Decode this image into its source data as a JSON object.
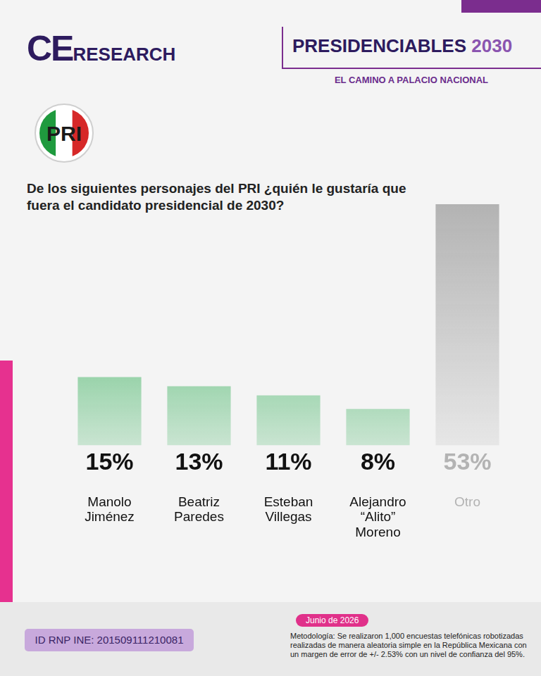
{
  "header": {
    "logo": [
      "CE",
      "RESEARCH"
    ],
    "title": [
      "PRESIDENCIABLES",
      "2030"
    ],
    "subtitle": "EL CAMINO A PALACIO NACIONAL"
  },
  "party_logo": "PRI",
  "chart_data": {
    "type": "bar",
    "title": "De los siguientes personajes del PRI ¿quién le gustaría que fuera el candidato presidencial de 2030?",
    "categories": [
      "Manolo Jiménez",
      "Beatriz Paredes",
      "Esteban Villegas",
      "Alejandro “Alito” Moreno",
      "Otro"
    ],
    "values": [
      15,
      13,
      11,
      8,
      53
    ],
    "value_labels": [
      "15%",
      "13%",
      "11%",
      "8%",
      "53%"
    ],
    "colors": [
      "#22a84a",
      "#22a84a",
      "#22a84a",
      "#22a84a",
      "#b3b3b3"
    ],
    "ylim": [
      0,
      53
    ],
    "grid": false,
    "tick_labels": "x",
    "data_labels": true
  },
  "footer": {
    "id": "ID RNP INE: 201509111210081",
    "date": "Junio de 2026",
    "methodology": "Metodología: Se realizaron 1,000 encuestas telefónicas robotizadas realizadas de manera aleatoria simple en la República Mexicana con un margen de error de +/- 2.53% con un nivel de confianza del 95%."
  }
}
